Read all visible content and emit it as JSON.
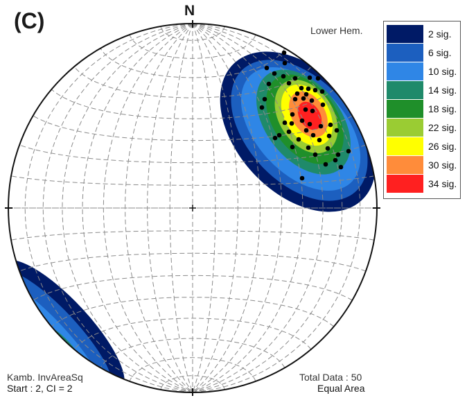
{
  "figure": {
    "panel_label": "(C)",
    "north_label": "N",
    "hemisphere": "Lower Hem.",
    "contour_method": "Kamb. InvAreaSq",
    "contour_start": "Start : 2, CI = 2",
    "total_data": "Total Data : 50",
    "projection": "Equal Area"
  },
  "legend": [
    {
      "label": "2 sig.",
      "color": "#001a66"
    },
    {
      "label": "6 sig.",
      "color": "#1c5fbf"
    },
    {
      "label": "10 sig.",
      "color": "#2f86e6"
    },
    {
      "label": "14 sig.",
      "color": "#1f8a6a"
    },
    {
      "label": "18 sig.",
      "color": "#1f8f2a"
    },
    {
      "label": "22 sig.",
      "color": "#9acc33"
    },
    {
      "label": "26 sig.",
      "color": "#ffff00"
    },
    {
      "label": "30 sig.",
      "color": "#ff8c3a"
    },
    {
      "label": "34 sig.",
      "color": "#ff2020"
    }
  ],
  "colors": {
    "net_lines": "#8a8a8a",
    "primitive": "#111111",
    "points": "#000000"
  }
}
